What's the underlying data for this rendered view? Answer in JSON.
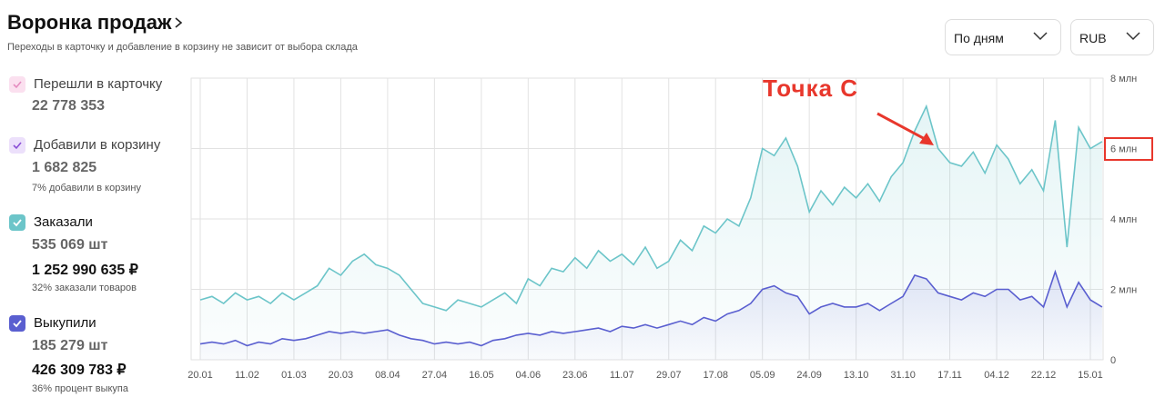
{
  "header": {
    "title": "Воронка продаж",
    "subtitle": "Переходы в карточку и добавление в корзину не зависит от выбора склада"
  },
  "controls": {
    "period": "По дням",
    "currency": "RUB"
  },
  "metrics": [
    {
      "name": "Перешли в карточку",
      "count": "22 778 353"
    },
    {
      "name": "Добавили в корзину",
      "count": "1 682 825",
      "note": "7% добавили в корзину"
    },
    {
      "count": "535 069 шт",
      "amount": "1 252 990 635 ₽",
      "note": "32% заказали товаров"
    },
    {
      "count": "185 279 шт",
      "amount": "426 309 783 ₽",
      "note": "36% процент выкупа"
    }
  ],
  "chart_data": {
    "type": "line",
    "annotation": "Точка С",
    "grid": true,
    "categories": [
      "20.01",
      null,
      null,
      null,
      "11.02",
      null,
      null,
      null,
      "01.03",
      null,
      null,
      null,
      "20.03",
      null,
      null,
      null,
      "08.04",
      null,
      null,
      null,
      "27.04",
      null,
      null,
      null,
      "16.05",
      null,
      null,
      null,
      "04.06",
      null,
      null,
      null,
      "23.06",
      null,
      null,
      null,
      "11.07",
      null,
      null,
      null,
      "29.07",
      null,
      null,
      null,
      "17.08",
      null,
      null,
      null,
      "05.09",
      null,
      null,
      null,
      "24.09",
      null,
      null,
      null,
      "13.10",
      null,
      null,
      null,
      "31.10",
      null,
      null,
      null,
      "17.11",
      null,
      null,
      null,
      "04.12",
      null,
      null,
      null,
      "22.12",
      null,
      null,
      null,
      "15.01",
      null
    ],
    "series": [
      {
        "name": "Заказали",
        "color": "#6cc5c9",
        "values": [
          1700000,
          1800000,
          1600000,
          1900000,
          1700000,
          1800000,
          1600000,
          1900000,
          1700000,
          1900000,
          2100000,
          2600000,
          2400000,
          2800000,
          3000000,
          2700000,
          2600000,
          2400000,
          2000000,
          1600000,
          1500000,
          1400000,
          1700000,
          1600000,
          1500000,
          1700000,
          1900000,
          1600000,
          2300000,
          2100000,
          2600000,
          2500000,
          2900000,
          2600000,
          3100000,
          2800000,
          3000000,
          2700000,
          3200000,
          2600000,
          2800000,
          3400000,
          3100000,
          3800000,
          3600000,
          4000000,
          3800000,
          4600000,
          6000000,
          5800000,
          6300000,
          5500000,
          4200000,
          4800000,
          4400000,
          4900000,
          4600000,
          5000000,
          4500000,
          5200000,
          5600000,
          6500000,
          7200000,
          6000000,
          5600000,
          5500000,
          5900000,
          5300000,
          6100000,
          5700000,
          5000000,
          5400000,
          4800000,
          6800000,
          3200000,
          6600000,
          6000000,
          6200000
        ]
      },
      {
        "name": "Выкупили",
        "color": "#5a5fd0",
        "values": [
          450000,
          500000,
          450000,
          550000,
          400000,
          500000,
          450000,
          600000,
          550000,
          600000,
          700000,
          800000,
          750000,
          800000,
          750000,
          800000,
          850000,
          700000,
          600000,
          550000,
          450000,
          500000,
          450000,
          500000,
          400000,
          550000,
          600000,
          700000,
          750000,
          700000,
          800000,
          750000,
          800000,
          850000,
          900000,
          800000,
          950000,
          900000,
          1000000,
          900000,
          1000000,
          1100000,
          1000000,
          1200000,
          1100000,
          1300000,
          1400000,
          1600000,
          2000000,
          2100000,
          1900000,
          1800000,
          1300000,
          1500000,
          1600000,
          1500000,
          1500000,
          1600000,
          1400000,
          1600000,
          1800000,
          2400000,
          2300000,
          1900000,
          1800000,
          1700000,
          1900000,
          1800000,
          2000000,
          2000000,
          1700000,
          1800000,
          1500000,
          2500000,
          1500000,
          2200000,
          1700000,
          1500000
        ]
      }
    ],
    "ylim": [
      0,
      8000000
    ],
    "yticks": [
      {
        "value": 0,
        "label": "0"
      },
      {
        "value": 2000000,
        "label": "2 млн"
      },
      {
        "value": 4000000,
        "label": "4 млн"
      },
      {
        "value": 6000000,
        "label": "6 млн"
      },
      {
        "value": 8000000,
        "label": "8 млн"
      }
    ]
  }
}
